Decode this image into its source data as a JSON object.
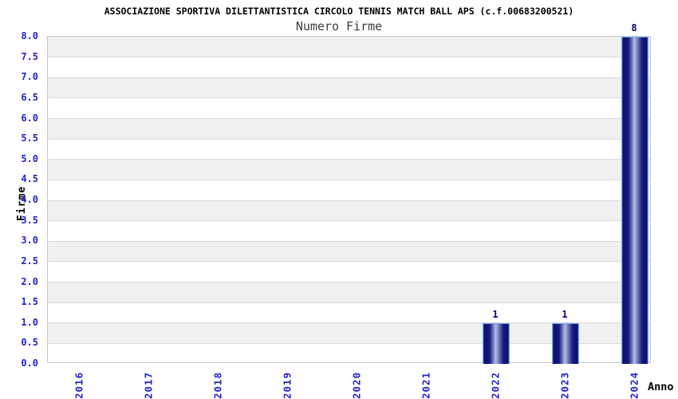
{
  "header": {
    "title": "ASSOCIAZIONE SPORTIVA DILETTANTISTICA CIRCOLO TENNIS MATCH BALL APS (c.f.00683200521)",
    "subtitle": "Numero Firme"
  },
  "chart_data": {
    "type": "bar",
    "title": "ASSOCIAZIONE SPORTIVA DILETTANTISTICA CIRCOLO TENNIS MATCH BALL APS (c.f.00683200521)",
    "subtitle": "Numero Firme",
    "xlabel": "Anno",
    "ylabel": "Firme",
    "categories": [
      "2016",
      "2017",
      "2018",
      "2019",
      "2020",
      "2021",
      "2022",
      "2023",
      "2024"
    ],
    "values": [
      0,
      0,
      0,
      0,
      0,
      0,
      1,
      1,
      8
    ],
    "bar_value_labels": [
      "",
      "",
      "",
      "",
      "",
      "",
      "1",
      "1",
      "8"
    ],
    "ylim": [
      0,
      8
    ],
    "ytick_step": 0.5,
    "y_ticks": [
      "0.0",
      "0.5",
      "1.0",
      "1.5",
      "2.0",
      "2.5",
      "3.0",
      "3.5",
      "4.0",
      "4.5",
      "5.0",
      "5.5",
      "6.0",
      "6.5",
      "7.0",
      "7.5",
      "8.0"
    ],
    "grid": true,
    "band_fill": true,
    "legend_position": "none"
  },
  "colors": {
    "background": "#ffffff",
    "band_gray": "#f0f0f0",
    "gridline": "#d9d9d9",
    "plot_border": "#c4c4c4",
    "tick_label_blue": "#2222cc",
    "value_label_navy": "#000066",
    "bar_dark": "#0e0e6a",
    "bar_light": "#b4c0e8",
    "bar_border_lightblue": "#74a6ee",
    "title_color": "#000000",
    "subtitle_color": "#3c3c3c"
  }
}
